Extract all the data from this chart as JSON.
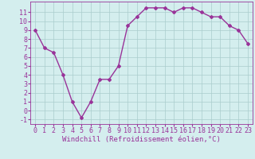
{
  "x": [
    0,
    1,
    2,
    3,
    4,
    5,
    6,
    7,
    8,
    9,
    10,
    11,
    12,
    13,
    14,
    15,
    16,
    17,
    18,
    19,
    20,
    21,
    22,
    23
  ],
  "y": [
    9,
    7,
    6.5,
    4,
    1,
    -0.8,
    1,
    3.5,
    3.5,
    5,
    9.5,
    10.5,
    11.5,
    11.5,
    11.5,
    11,
    11.5,
    11.5,
    11,
    10.5,
    10.5,
    9.5,
    9,
    7.5
  ],
  "line_color": "#993399",
  "marker": "D",
  "marker_size": 2,
  "linewidth": 1.0,
  "bg_color": "#d4eeee",
  "grid_color": "#aacccc",
  "xlabel": "Windchill (Refroidissement éolien,°C)",
  "xlabel_color": "#993399",
  "xlabel_fontsize": 6.5,
  "yticks": [
    -1,
    0,
    1,
    2,
    3,
    4,
    5,
    6,
    7,
    8,
    9,
    10,
    11
  ],
  "xlim": [
    -0.5,
    23.5
  ],
  "ylim": [
    -1.5,
    12.2
  ],
  "tick_fontsize": 6,
  "tick_color": "#993399",
  "spine_color": "#993399"
}
